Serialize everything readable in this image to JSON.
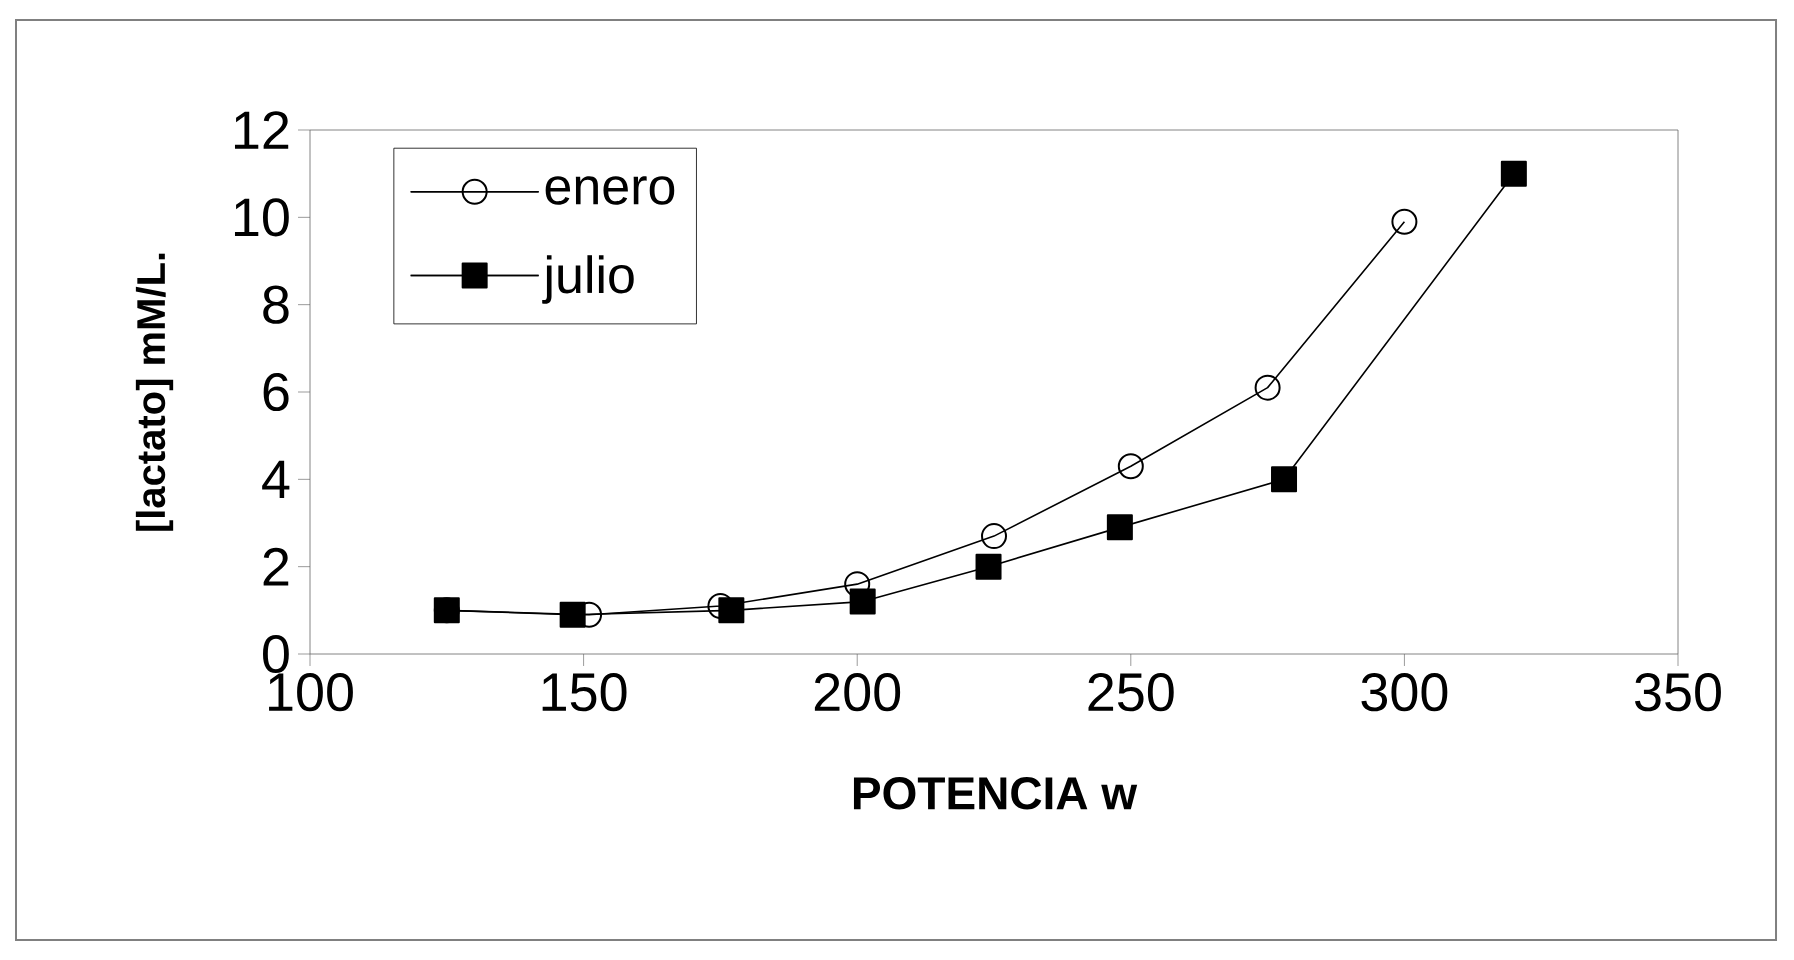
{
  "chart_data": {
    "type": "line",
    "xlabel": "POTENCIA w",
    "ylabel": "[lactato] mM/L.",
    "xlim": [
      100,
      350
    ],
    "xticks": [
      100,
      150,
      200,
      250,
      300,
      350
    ],
    "ylim": [
      0,
      12
    ],
    "yticks": [
      0,
      2,
      4,
      6,
      8,
      10,
      12
    ],
    "grid": false,
    "legend": "top left",
    "series": [
      {
        "name": "enero",
        "color": "#000000",
        "marker": "circle",
        "x": [
          125,
          151,
          175,
          200,
          225,
          250,
          275,
          300
        ],
        "values": [
          1.0,
          0.9,
          1.1,
          1.6,
          2.7,
          4.3,
          6.1,
          9.9
        ]
      },
      {
        "name": "julio",
        "color": "#000000",
        "marker": "square",
        "x": [
          125,
          148,
          177,
          201,
          224,
          248,
          278,
          320
        ],
        "values": [
          1.0,
          0.9,
          1.0,
          1.2,
          2.0,
          2.9,
          4.0,
          11.0
        ]
      }
    ]
  }
}
